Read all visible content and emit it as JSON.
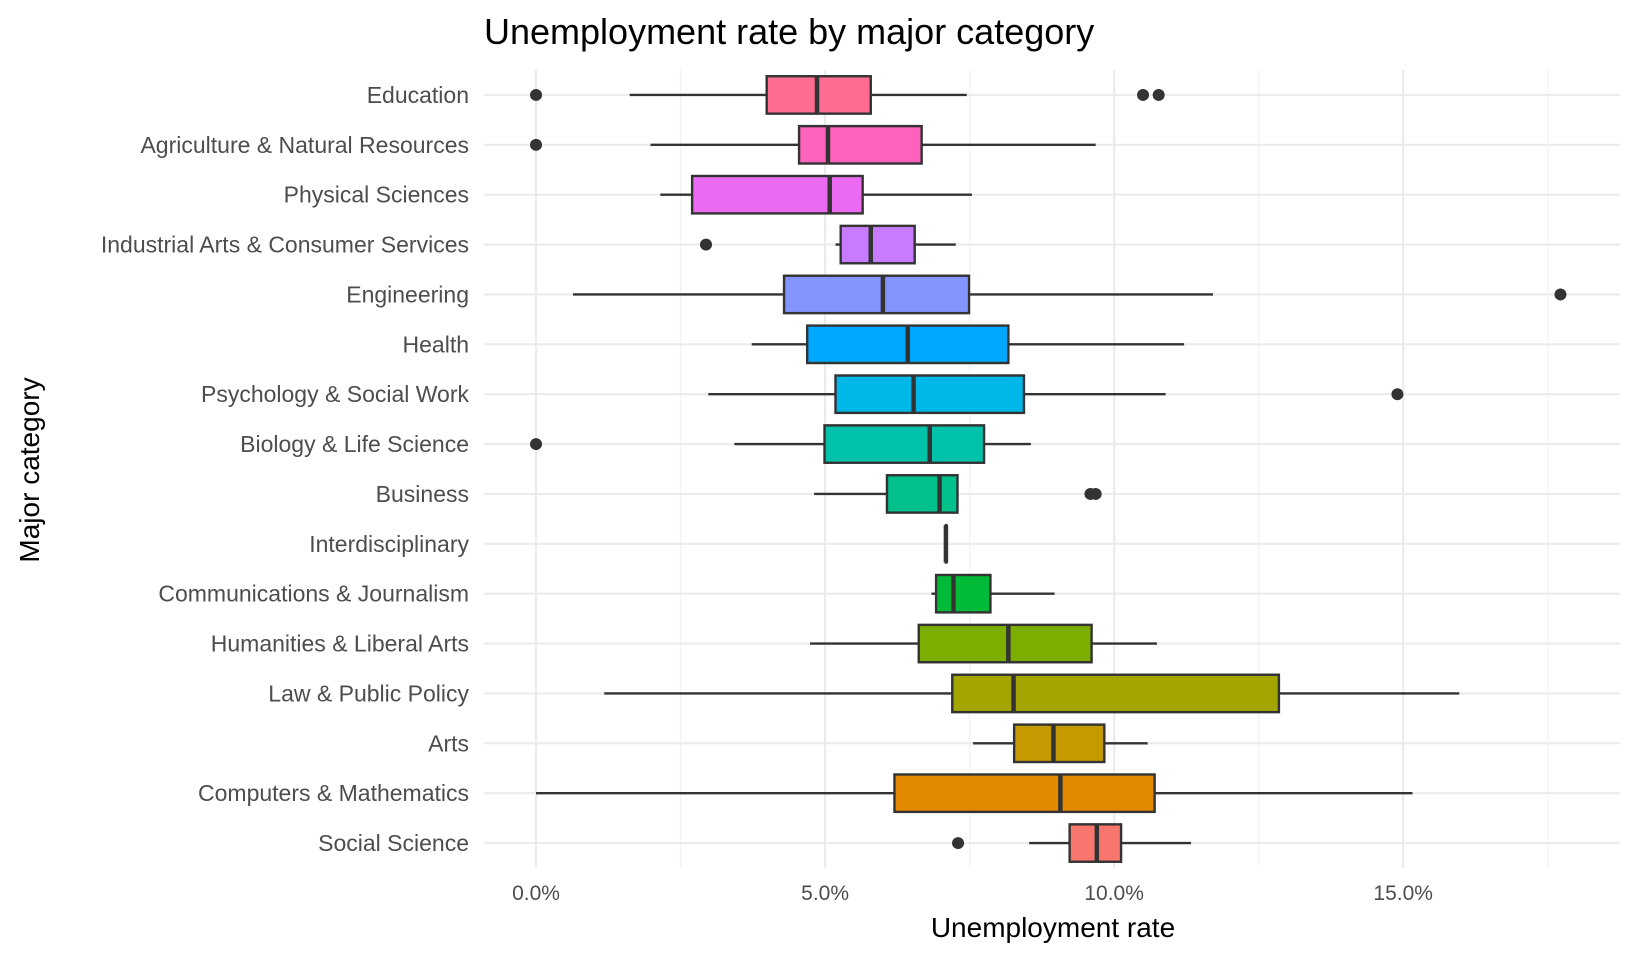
{
  "chart_data": {
    "type": "boxplot",
    "title": "Unemployment rate by major category",
    "xlabel": "Unemployment rate",
    "ylabel": "Major category",
    "xlim": [
      -0.9,
      18.75
    ],
    "x_ticks": [
      {
        "value": 0,
        "label": "0.0%"
      },
      {
        "value": 5,
        "label": "5.0%"
      },
      {
        "value": 10,
        "label": "10.0%"
      },
      {
        "value": 15,
        "label": "15.0%"
      }
    ],
    "x_minor_ticks": [
      2.5,
      7.5,
      12.5,
      17.5
    ],
    "grid": true,
    "legend": "none",
    "categories": [
      {
        "name": "Education",
        "color": "#FF6C91",
        "whisker_low": 1.62,
        "q1": 3.99,
        "median": 4.86,
        "q3": 5.79,
        "whisker_high": 7.45,
        "outliers": [
          0.0,
          10.5,
          10.77
        ]
      },
      {
        "name": "Agriculture & Natural Resources",
        "color": "#FF62BC",
        "whisker_low": 1.98,
        "q1": 4.55,
        "median": 5.05,
        "q3": 6.67,
        "whisker_high": 9.68,
        "outliers": [
          0.0
        ]
      },
      {
        "name": "Physical Sciences",
        "color": "#EA6AF1",
        "whisker_low": 2.15,
        "q1": 2.7,
        "median": 5.08,
        "q3": 5.65,
        "whisker_high": 7.54,
        "outliers": []
      },
      {
        "name": "Industrial Arts & Consumer Services",
        "color": "#C77CFF",
        "whisker_low": 5.18,
        "q1": 5.27,
        "median": 5.79,
        "q3": 6.55,
        "whisker_high": 7.26,
        "outliers": [
          2.94
        ]
      },
      {
        "name": "Engineering",
        "color": "#8494FF",
        "whisker_low": 0.64,
        "q1": 4.29,
        "median": 6.0,
        "q3": 7.49,
        "whisker_high": 11.71,
        "outliers": [
          17.72
        ]
      },
      {
        "name": "Health",
        "color": "#00A9FF",
        "whisker_low": 3.73,
        "q1": 4.69,
        "median": 6.43,
        "q3": 8.17,
        "whisker_high": 11.21,
        "outliers": []
      },
      {
        "name": "Psychology & Social Work",
        "color": "#00B8E7",
        "whisker_low": 2.98,
        "q1": 5.18,
        "median": 6.53,
        "q3": 8.44,
        "whisker_high": 10.89,
        "outliers": [
          14.9
        ]
      },
      {
        "name": "Biology & Life Science",
        "color": "#00C1A9",
        "whisker_low": 3.43,
        "q1": 4.99,
        "median": 6.81,
        "q3": 7.75,
        "whisker_high": 8.56,
        "outliers": [
          0.0
        ]
      },
      {
        "name": "Business",
        "color": "#00C08B",
        "whisker_low": 4.81,
        "q1": 6.07,
        "median": 6.98,
        "q3": 7.29,
        "whisker_high": 7.29,
        "outliers": [
          9.59,
          9.68
        ]
      },
      {
        "name": "Interdisciplinary",
        "color": "#00BE67",
        "whisker_low": 7.09,
        "q1": 7.09,
        "median": 7.09,
        "q3": 7.09,
        "whisker_high": 7.09,
        "outliers": []
      },
      {
        "name": "Communications & Journalism",
        "color": "#00BA38",
        "whisker_low": 6.84,
        "q1": 6.92,
        "median": 7.22,
        "q3": 7.86,
        "whisker_high": 8.97,
        "outliers": []
      },
      {
        "name": "Humanities & Liberal Arts",
        "color": "#7CAE00",
        "whisker_low": 4.74,
        "q1": 6.62,
        "median": 8.17,
        "q3": 9.61,
        "whisker_high": 10.74,
        "outliers": []
      },
      {
        "name": "Law & Public Policy",
        "color": "#A3A500",
        "whisker_low": 1.18,
        "q1": 7.2,
        "median": 8.26,
        "q3": 12.85,
        "whisker_high": 15.97,
        "outliers": []
      },
      {
        "name": "Arts",
        "color": "#C49A00",
        "whisker_low": 7.56,
        "q1": 8.27,
        "median": 8.95,
        "q3": 9.83,
        "whisker_high": 10.58,
        "outliers": []
      },
      {
        "name": "Computers & Mathematics",
        "color": "#E38900",
        "whisker_low": 0.0,
        "q1": 6.2,
        "median": 9.07,
        "q3": 10.7,
        "whisker_high": 15.16,
        "outliers": []
      },
      {
        "name": "Social Science",
        "color": "#F8766D",
        "whisker_low": 8.53,
        "q1": 9.23,
        "median": 9.7,
        "q3": 10.12,
        "whisker_high": 11.33,
        "outliers": [
          7.3
        ]
      }
    ]
  }
}
